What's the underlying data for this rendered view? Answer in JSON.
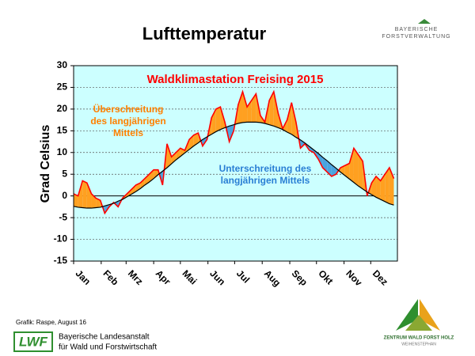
{
  "header": {
    "title": "Lufttemperatur",
    "logo_top": "BAYERISCHE",
    "logo_bottom": "FORSTVERWALTUNG"
  },
  "chart_data": {
    "type": "line",
    "title": "Waldklimastation Freising 2015",
    "title_color": "#ff0000",
    "y_label": "Grad Celsius",
    "annotations": [
      {
        "lines": [
          "Überschreitung",
          "des langjährigen",
          "Mittels"
        ],
        "color": "#ff8000"
      },
      {
        "lines": [
          "Unterschreitung des",
          "langjährigen Mittels"
        ],
        "color": "#2a7fd4"
      }
    ],
    "x": [
      1,
      6,
      11,
      16,
      21,
      26,
      31,
      36,
      41,
      46,
      51,
      56,
      61,
      66,
      71,
      76,
      81,
      86,
      91,
      96,
      101,
      106,
      111,
      116,
      121,
      126,
      131,
      136,
      141,
      146,
      151,
      156,
      161,
      166,
      171,
      176,
      181,
      186,
      191,
      196,
      201,
      206,
      211,
      216,
      221,
      226,
      231,
      236,
      241,
      246,
      251,
      256,
      261,
      266,
      271,
      276,
      281,
      286,
      291,
      296,
      301,
      306,
      311,
      316,
      321,
      326,
      331,
      336,
      341,
      346,
      351,
      356,
      361
    ],
    "series": [
      {
        "color": "#ff0000",
        "values": [
          0.5,
          0,
          3.5,
          3,
          0.5,
          -0.5,
          -1,
          -4,
          -2.5,
          -1.5,
          -2.5,
          -0.5,
          0.5,
          1.5,
          2.5,
          3,
          4,
          5,
          6,
          6,
          2.5,
          12,
          9,
          10,
          11,
          10.5,
          13,
          14,
          14.5,
          11.5,
          13,
          18,
          20,
          20.5,
          17,
          12.5,
          15,
          21,
          24,
          20.5,
          22,
          23.5,
          18.5,
          17,
          22,
          24,
          19,
          15.5,
          17.5,
          21.5,
          17,
          11,
          12,
          10.5,
          10,
          8.5,
          6.5,
          5.5,
          4.5,
          5,
          6.5,
          7,
          7.5,
          11,
          9.5,
          8,
          0,
          3,
          4.5,
          3.5,
          5,
          6.5,
          4
        ]
      },
      {
        "color": "#000000",
        "values": [
          -2.4,
          -2.6,
          -2.7,
          -2.8,
          -2.8,
          -2.7,
          -2.6,
          -2.3,
          -2.0,
          -1.7,
          -1.2,
          -0.8,
          -0.2,
          0.4,
          1.0,
          1.7,
          2.5,
          3.2,
          4.0,
          4.9,
          5.7,
          6.5,
          7.4,
          8.3,
          9.1,
          9.9,
          10.7,
          11.5,
          12.2,
          13.0,
          13.6,
          14.2,
          14.8,
          15.3,
          15.7,
          16.1,
          16.4,
          16.7,
          16.9,
          17.0,
          17.0,
          17.0,
          16.9,
          16.7,
          16.4,
          16.1,
          15.7,
          15.3,
          14.7,
          14.2,
          13.5,
          12.9,
          12.2,
          11.4,
          10.6,
          9.8,
          8.9,
          8.1,
          7.2,
          6.4,
          5.5,
          4.7,
          3.9,
          3.1,
          2.3,
          1.6,
          0.9,
          0.3,
          -0.3,
          -0.8,
          -1.3,
          -1.8,
          -2.1
        ]
      }
    ],
    "fill_above": "#ffa020",
    "fill_below": "#4aa3df",
    "plot_background": "#ccffff",
    "grid": true,
    "xlim": [
      1,
      365
    ],
    "xticks": [
      {
        "value": 1,
        "label": "Jan"
      },
      {
        "value": 32,
        "label": "Feb"
      },
      {
        "value": 60,
        "label": "Mrz"
      },
      {
        "value": 91,
        "label": "Apr"
      },
      {
        "value": 121,
        "label": "Mai"
      },
      {
        "value": 152,
        "label": "Jun"
      },
      {
        "value": 182,
        "label": "Jul"
      },
      {
        "value": 213,
        "label": "Aug"
      },
      {
        "value": 244,
        "label": "Sep"
      },
      {
        "value": 274,
        "label": "Okt"
      },
      {
        "value": 305,
        "label": "Nov"
      },
      {
        "value": 335,
        "label": "Dez"
      }
    ],
    "ylim": [
      -15,
      30
    ],
    "yticks": [
      -15,
      -10,
      -5,
      0,
      5,
      10,
      15,
      20,
      25,
      30
    ]
  },
  "footer": {
    "credit": "Grafik: Raspe, August 16",
    "lwf": "LWF",
    "inst_line1": "Bayerische Landesanstalt",
    "inst_line2": "für Wald und Forstwirtschaft",
    "center_line1": "ZENTRUM WALD FORST HOLZ",
    "center_line2": "WEIHENSTEPHAN"
  }
}
